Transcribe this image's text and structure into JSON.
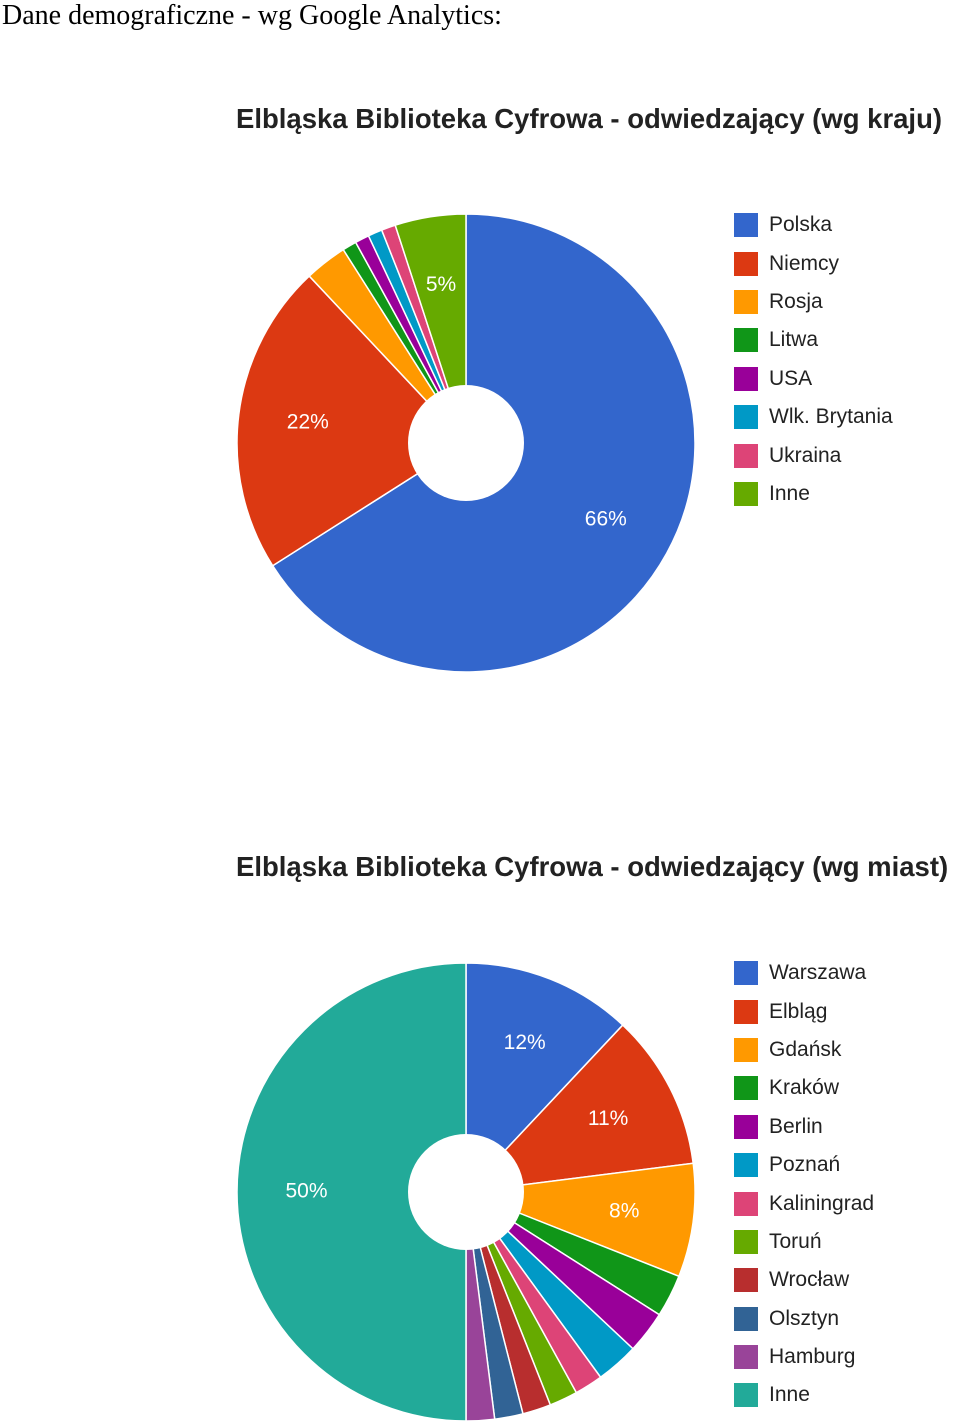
{
  "page": {
    "heading": "Dane demograficzne - wg Google Analytics:"
  },
  "chart_data": [
    {
      "type": "pie",
      "donut": true,
      "title": "Elbląska Biblioteka Cyfrowa - odwiedzający (wg kraju)",
      "legend_position": "right",
      "categories": [
        "Polska",
        "Niemcy",
        "Rosja",
        "Litwa",
        "USA",
        "Wlk. Brytania",
        "Ukraina",
        "Inne"
      ],
      "values": [
        66,
        22,
        3,
        1,
        1,
        1,
        1,
        5
      ],
      "data_labels": [
        "66%",
        "22%",
        "",
        "",
        "",
        "",
        "",
        "5%"
      ],
      "colors": [
        "#3366cc",
        "#dc3912",
        "#ff9900",
        "#109618",
        "#990099",
        "#0099c6",
        "#dd4477",
        "#66aa00"
      ]
    },
    {
      "type": "pie",
      "donut": true,
      "title": "Elbląska Biblioteka Cyfrowa - odwiedzający (wg miast)",
      "legend_position": "right",
      "categories": [
        "Warszawa",
        "Elbląg",
        "Gdańsk",
        "Kraków",
        "Berlin",
        "Poznań",
        "Kaliningrad",
        "Toruń",
        "Wrocław",
        "Olsztyn",
        "Hamburg",
        "Inne"
      ],
      "values": [
        12,
        11,
        8,
        3,
        3,
        3,
        2,
        2,
        2,
        2,
        2,
        50
      ],
      "data_labels": [
        "12%",
        "11%",
        "8%",
        "",
        "",
        "",
        "",
        "",
        "",
        "",
        "",
        "50%"
      ],
      "colors": [
        "#3366cc",
        "#dc3912",
        "#ff9900",
        "#109618",
        "#990099",
        "#0099c6",
        "#dd4477",
        "#66aa00",
        "#b82e2e",
        "#316395",
        "#994499",
        "#22aa99"
      ]
    }
  ]
}
